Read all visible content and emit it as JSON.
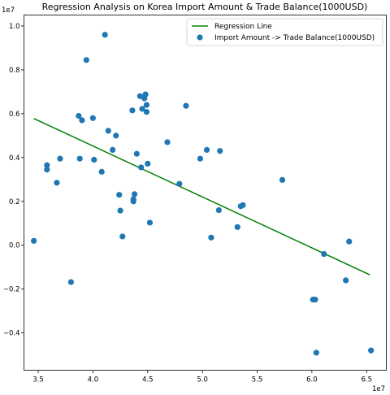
{
  "chart_data": {
    "type": "scatter",
    "title": "Regression Analysis on Korea Import Amount & Trade Balance(1000USD)",
    "x_offset_text": "1e7",
    "y_offset_text": "1e7",
    "xlim": [
      3.37,
      6.68
    ],
    "ylim": [
      -0.57,
      1.05
    ],
    "x_ticks": [
      3.5,
      4.0,
      4.5,
      5.0,
      5.5,
      6.0,
      6.5
    ],
    "y_ticks": [
      -0.4,
      -0.2,
      0.0,
      0.2,
      0.4,
      0.6,
      0.8,
      1.0
    ],
    "x_tick_labels": [
      "3.5",
      "4.0",
      "4.5",
      "5.0",
      "5.5",
      "6.0",
      "6.5"
    ],
    "y_tick_labels": [
      "−0.4",
      "−0.2",
      "0.0",
      "0.2",
      "0.4",
      "0.6",
      "0.8",
      "1.0"
    ],
    "grid": false,
    "legend_position": "top-right",
    "series": [
      {
        "name": "Regression Line",
        "kind": "line",
        "color": "#008000",
        "x": [
          3.46,
          6.53
        ],
        "y": [
          0.578,
          -0.135
        ]
      },
      {
        "name": "Import Amount -> Trade Balance(1000USD)",
        "kind": "scatter",
        "color": "#1f77b4",
        "x": [
          3.46,
          3.58,
          3.58,
          3.67,
          3.7,
          3.8,
          3.87,
          3.88,
          3.9,
          3.94,
          4.0,
          4.01,
          4.08,
          4.11,
          4.14,
          4.18,
          4.21,
          4.24,
          4.25,
          4.27,
          4.36,
          4.37,
          4.37,
          4.38,
          4.4,
          4.43,
          4.44,
          4.45,
          4.47,
          4.48,
          4.49,
          4.49,
          4.5,
          4.52,
          4.68,
          4.79,
          4.85,
          4.98,
          5.04,
          5.08,
          5.15,
          5.16,
          5.32,
          5.35,
          5.37,
          5.73,
          6.01,
          6.03,
          6.04,
          6.11,
          6.31,
          6.34,
          6.54
        ],
        "y": [
          0.02,
          0.365,
          0.345,
          0.285,
          0.395,
          -0.168,
          0.59,
          0.395,
          0.57,
          0.845,
          0.58,
          0.39,
          0.335,
          0.96,
          0.522,
          0.435,
          0.5,
          0.23,
          0.158,
          0.04,
          0.615,
          0.21,
          0.2,
          0.233,
          0.417,
          0.68,
          0.355,
          0.622,
          0.67,
          0.688,
          0.64,
          0.608,
          0.372,
          0.103,
          0.47,
          0.28,
          0.636,
          0.395,
          0.435,
          0.035,
          0.16,
          0.43,
          0.083,
          0.178,
          0.183,
          0.298,
          -0.248,
          -0.248,
          -0.49,
          -0.04,
          -0.16,
          0.017,
          -0.48
        ]
      }
    ]
  }
}
